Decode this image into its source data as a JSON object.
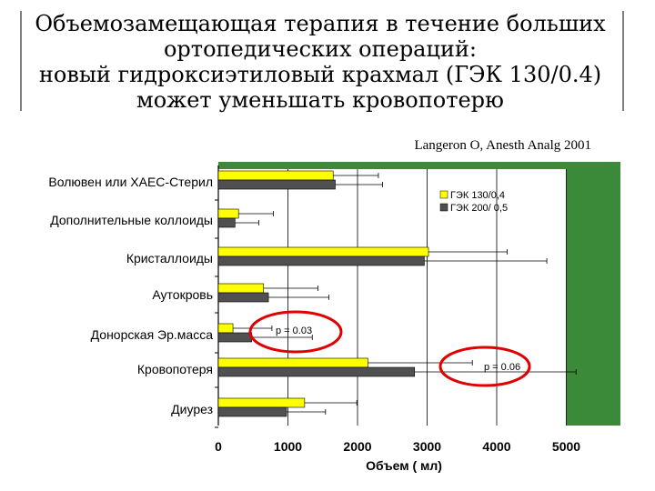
{
  "slide": {
    "title_lines": [
      "Объемозамещающая терапия в течение больших",
      "ортопедических операций:",
      "новый гидроксиэтиловый крахмал (ГЭК 130/0.4)",
      "может уменьшать кровопотерю"
    ],
    "citation": "Langeron O, Anesth Analg 2001"
  },
  "colors": {
    "plot_bg": "#3a8a3a",
    "series1": "#ffff00",
    "series2": "#505050",
    "circle": "#e00000"
  },
  "chart_data": {
    "type": "bar",
    "orientation": "horizontal",
    "categories": [
      "Волювен или ХАЕС-Стерил",
      "Дополнительные коллоиды",
      "Кристаллоиды",
      "Аутокровь",
      "Донорская Эр.масса",
      "Кровопотеря",
      "Диурез"
    ],
    "series": [
      {
        "name": "ГЭК 130/0,4",
        "values": [
          1650,
          290,
          3020,
          650,
          210,
          2150,
          1240
        ],
        "errors": [
          650,
          500,
          1130,
          780,
          560,
          1500,
          750
        ]
      },
      {
        "name": "ГЭК 200/ 0,5",
        "values": [
          1680,
          240,
          2960,
          720,
          480,
          2820,
          980
        ],
        "errors": [
          680,
          340,
          1760,
          870,
          870,
          2320,
          560
        ]
      }
    ],
    "xlabel": "Объем ( мл)",
    "xlim": [
      0,
      5000
    ],
    "xticks": [
      0,
      1000,
      2000,
      3000,
      4000,
      5000
    ],
    "grid": "vertical",
    "legend": "top-right",
    "annotations": [
      {
        "category": "Донорская Эр.масса",
        "text": "p = 0.03"
      },
      {
        "category": "Кровопотеря",
        "text": "p = 0.06"
      }
    ]
  }
}
